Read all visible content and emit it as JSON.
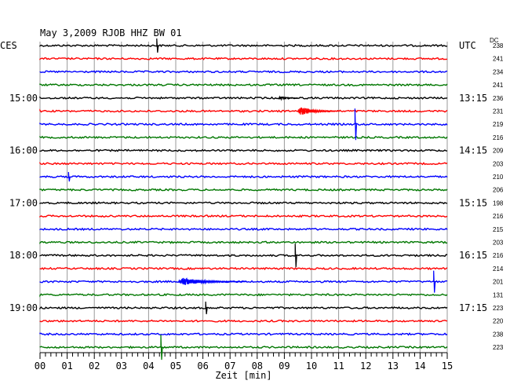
{
  "chart_data": {
    "type": "line",
    "title": "May 3,2009   RJOB HHZ BW 01",
    "left_axis_label": "CES",
    "right_axis_label": "UTC",
    "dc_label": "DC",
    "xlabel": "Zeit [min]",
    "x_ticks": [
      "00",
      "01",
      "02",
      "03",
      "04",
      "05",
      "06",
      "07",
      "08",
      "09",
      "10",
      "11",
      "12",
      "13",
      "14",
      "15"
    ],
    "xlim": [
      0,
      15
    ],
    "grid": true,
    "trace_colors": [
      "#000000",
      "#ff0000",
      "#0000ff",
      "#007700"
    ],
    "left_time_labels": [
      {
        "trace": 4,
        "label": "15:00"
      },
      {
        "trace": 8,
        "label": "16:00"
      },
      {
        "trace": 12,
        "label": "17:00"
      },
      {
        "trace": 16,
        "label": "18:00"
      },
      {
        "trace": 20,
        "label": "19:00"
      }
    ],
    "right_time_labels": [
      {
        "trace": 0,
        "label": "UTC"
      },
      {
        "trace": 4,
        "label": "13:15"
      },
      {
        "trace": 8,
        "label": "14:15"
      },
      {
        "trace": 12,
        "label": "15:15"
      },
      {
        "trace": 16,
        "label": "16:15"
      },
      {
        "trace": 20,
        "label": "17:15"
      }
    ],
    "dc_values": [
      "238",
      "241",
      "234",
      "241",
      "236",
      "231",
      "219",
      "216",
      "209",
      "203",
      "210",
      "206",
      "198",
      "216",
      "215",
      "203",
      "216",
      "214",
      "201",
      "131",
      "223",
      "220",
      "238",
      "223"
    ],
    "events": [
      {
        "trace": 0,
        "minute": 4.3,
        "amplitude": 9,
        "duration": 0.1
      },
      {
        "trace": 4,
        "minute": 8.8,
        "amplitude": 3,
        "duration": 0.7
      },
      {
        "trace": 5,
        "minute": 9.5,
        "amplitude": 7,
        "duration": 1.5
      },
      {
        "trace": 6,
        "minute": 11.6,
        "amplitude": 20,
        "duration": 0.1
      },
      {
        "trace": 10,
        "minute": 1.05,
        "amplitude": 6,
        "duration": 0.1
      },
      {
        "trace": 16,
        "minute": 9.4,
        "amplitude": 15,
        "duration": 0.1
      },
      {
        "trace": 18,
        "minute": 5.1,
        "amplitude": 6,
        "duration": 2.5
      },
      {
        "trace": 18,
        "minute": 14.5,
        "amplitude": 14,
        "duration": 0.1
      },
      {
        "trace": 20,
        "minute": 6.1,
        "amplitude": 8,
        "duration": 0.2
      },
      {
        "trace": 23,
        "minute": 4.45,
        "amplitude": 16,
        "duration": 0.1
      }
    ]
  }
}
